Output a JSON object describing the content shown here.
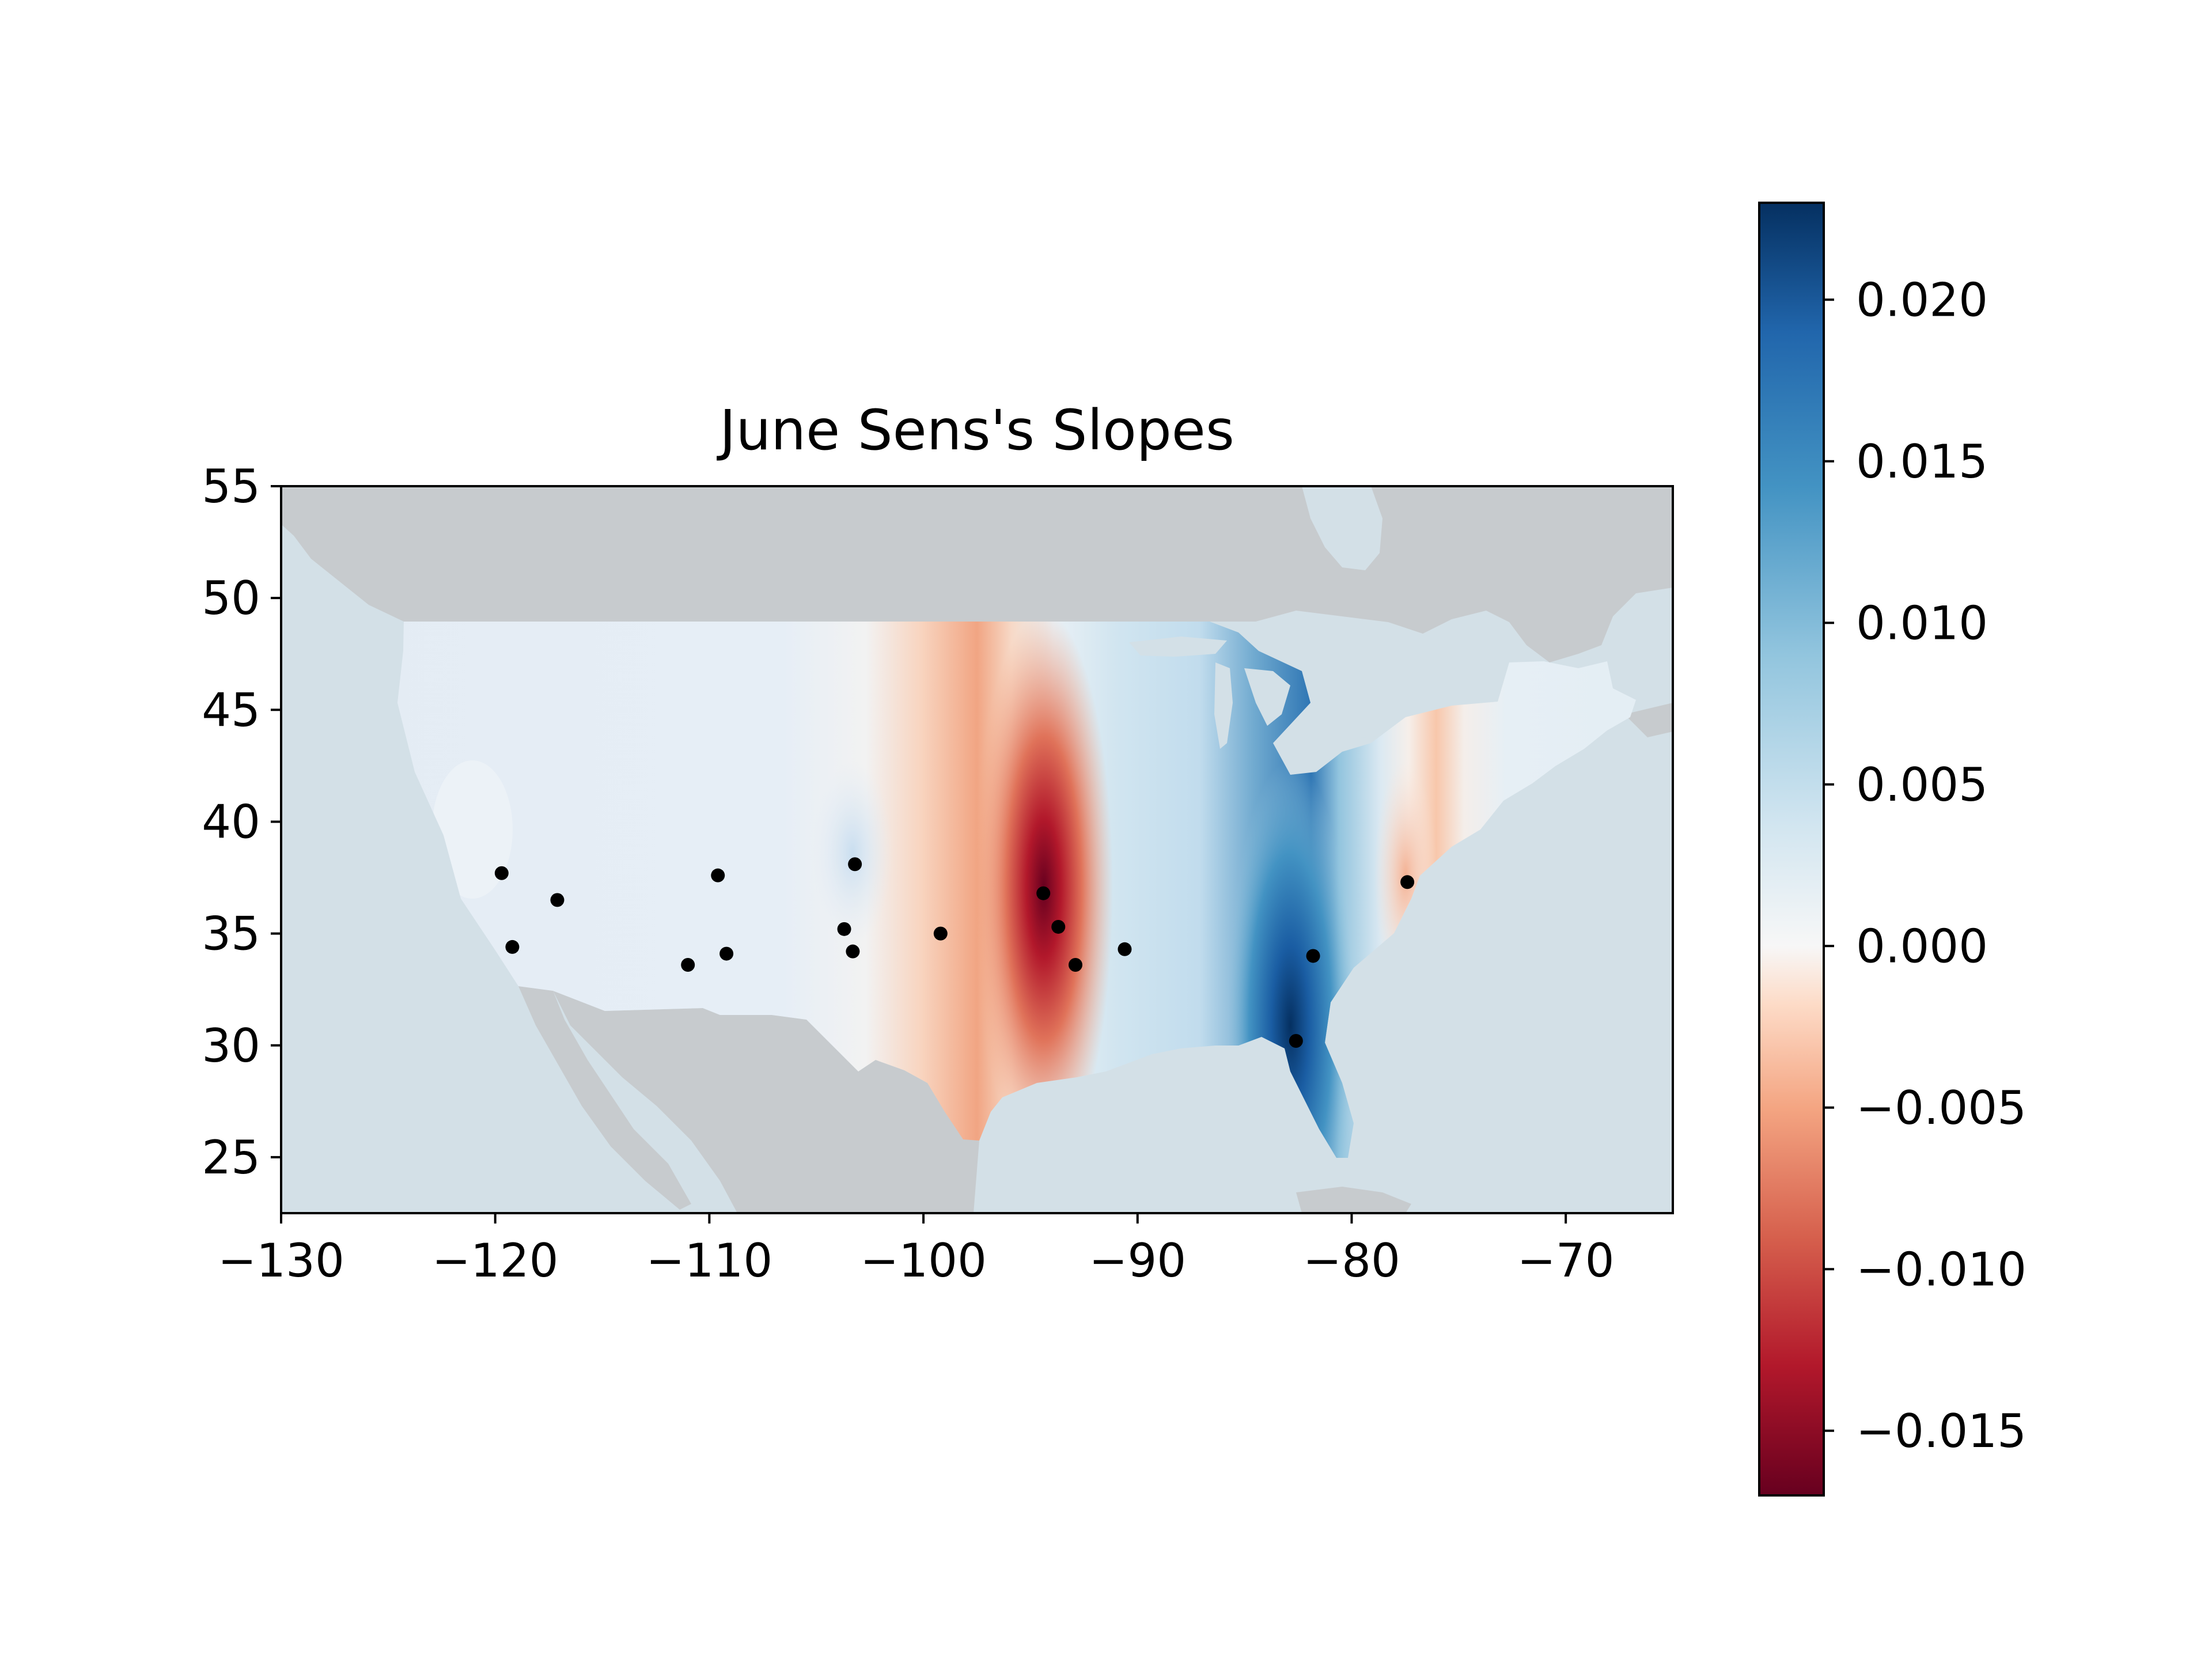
{
  "chart_data": {
    "type": "scatter",
    "title": "June Sens's Slopes",
    "xlabel": "",
    "ylabel": "",
    "xlim": [
      -130,
      -65
    ],
    "ylim": [
      22.5,
      55
    ],
    "x_ticks": [
      -130,
      -120,
      -110,
      -100,
      -90,
      -80,
      -70
    ],
    "x_tick_labels": [
      "−130",
      "−120",
      "−110",
      "−100",
      "−90",
      "−80",
      "−70"
    ],
    "y_ticks": [
      25,
      30,
      35,
      40,
      45,
      50,
      55
    ],
    "y_tick_labels": [
      "25",
      "30",
      "35",
      "40",
      "45",
      "50",
      "55"
    ],
    "grid": false,
    "colormap": "RdBu",
    "colorbar": {
      "vmin": -0.017,
      "vmax": 0.023,
      "ticks": [
        -0.015,
        -0.01,
        -0.005,
        0.0,
        0.005,
        0.01,
        0.015,
        0.02
      ],
      "tick_labels": [
        "−0.015",
        "−0.010",
        "−0.005",
        "0.000",
        "0.005",
        "0.010",
        "0.015",
        "0.020"
      ]
    },
    "stations": {
      "x": [
        -119.7,
        -117.1,
        -119.2,
        -109.6,
        -109.2,
        -111.0,
        -103.2,
        -103.7,
        -103.3,
        -99.2,
        -94.4,
        -93.7,
        -92.9,
        -90.6,
        -82.6,
        -81.8,
        -77.4
      ],
      "y": [
        37.7,
        36.5,
        34.4,
        37.6,
        34.1,
        33.6,
        38.1,
        35.2,
        34.2,
        35.0,
        36.8,
        35.3,
        33.6,
        34.3,
        30.2,
        34.0,
        37.3
      ]
    },
    "map_colors": {
      "ocean": "#d3e0e7",
      "land_outside": "#c7cbce",
      "lakes": "#d3e0e7"
    }
  }
}
